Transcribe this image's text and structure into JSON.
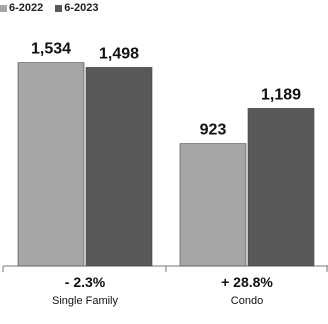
{
  "chart_data": {
    "type": "bar",
    "categories": [
      "Single Family",
      "Condo"
    ],
    "series": [
      {
        "name": "6-2022",
        "values": [
          1534,
          923
        ],
        "value_labels": [
          "1,534",
          "923"
        ],
        "color": "#a6a6a6"
      },
      {
        "name": "6-2023",
        "values": [
          1498,
          1189
        ],
        "value_labels": [
          "1,498",
          "1,189"
        ],
        "color": "#595959"
      }
    ],
    "annotations": [
      "- 2.3%",
      "+ 28.8%"
    ],
    "title": "",
    "xlabel": "",
    "ylabel": "",
    "ylim": [
      0,
      1750
    ],
    "grid": false,
    "legend": "top-left"
  }
}
